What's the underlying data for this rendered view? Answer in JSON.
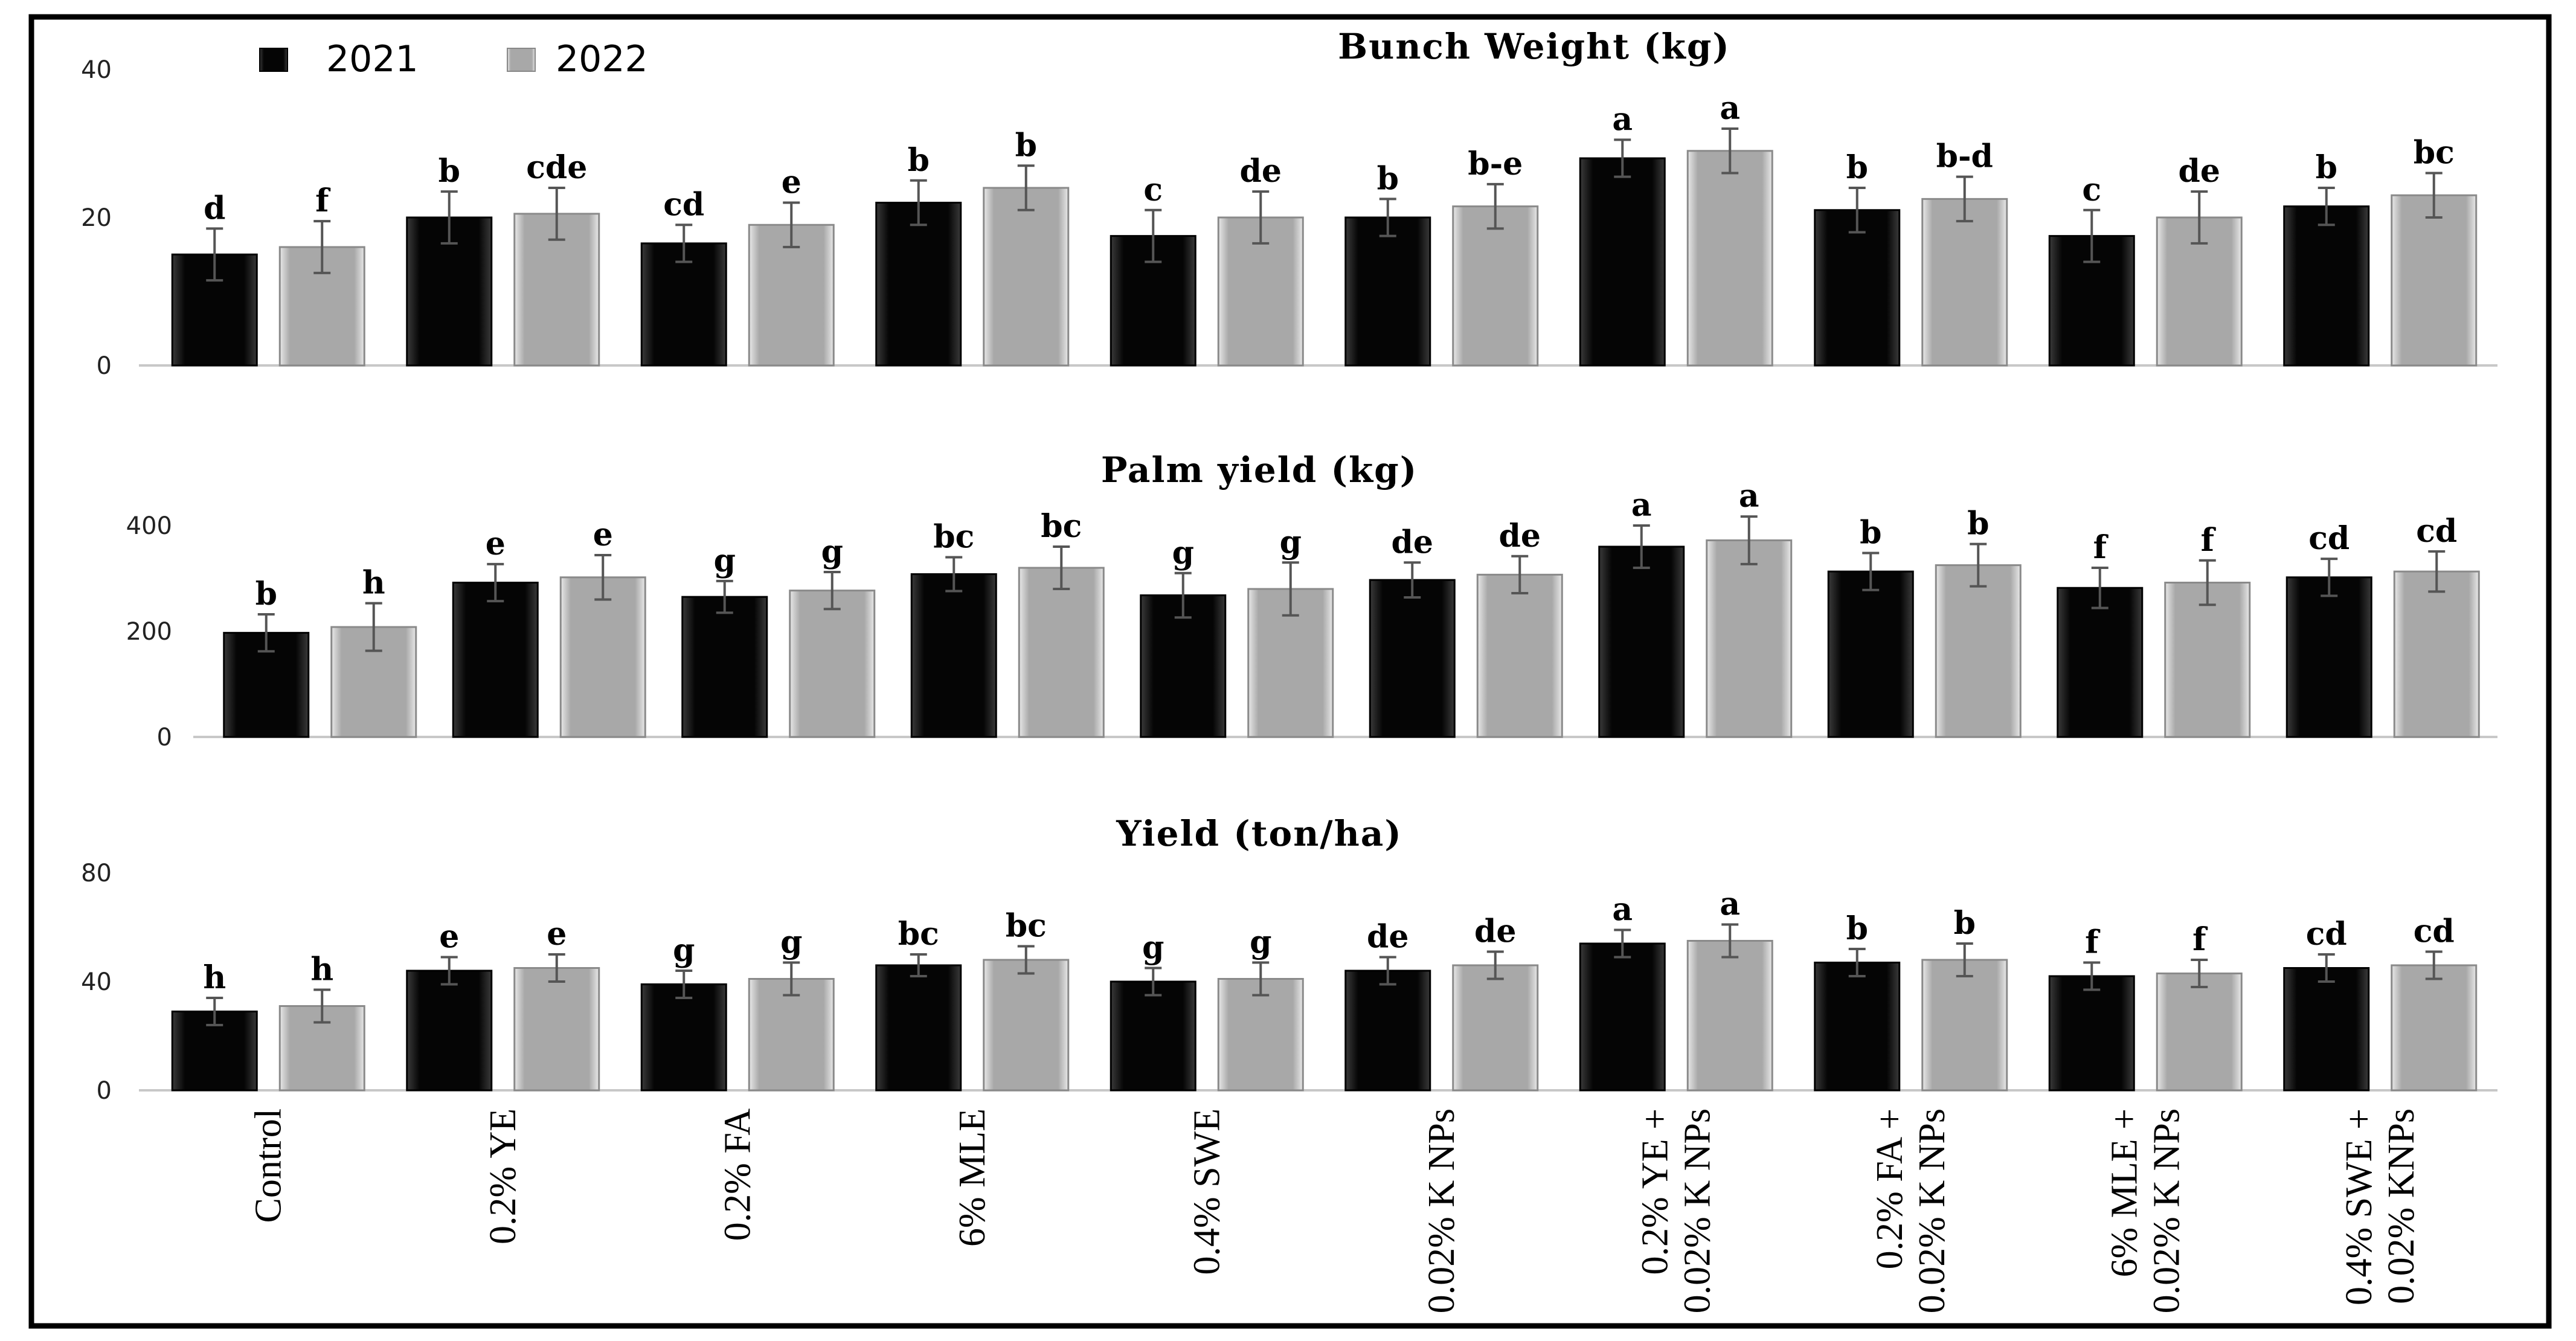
{
  "legend": {
    "series_2021": "2021",
    "series_2022": "2022"
  },
  "colors": {
    "s2021": "#0c0c0c",
    "s2022": "#b3b3b3",
    "frame": "#000000",
    "axis": "#c8c8c8",
    "error": "#555555"
  },
  "chart_data": [
    {
      "type": "bar",
      "title": "Bunch Weight (kg)",
      "ylim": [
        0,
        40
      ],
      "yticks": [
        "0",
        "20",
        "40"
      ],
      "categories": [
        "Control",
        "0.2% YE",
        "0.2% FA",
        "6% MLE",
        "0.4% SWE",
        "0.02% K NPs",
        "0.2% YE + 0.02% K NPs",
        "0.2% FA + 0.02% K NPs",
        "6% MLE + 0.02% K NPs",
        "0.4% SWE + 0.02% KNPs"
      ],
      "series": [
        {
          "name": "2021",
          "values": [
            15,
            20,
            16.5,
            22,
            17.5,
            20,
            28,
            21,
            17.5,
            21.5
          ],
          "errors": [
            3.5,
            3.5,
            2.5,
            3,
            3.5,
            2.5,
            2.5,
            3,
            3.5,
            2.5
          ],
          "letters": [
            "d",
            "b",
            "cd",
            "b",
            "c",
            "b",
            "a",
            "b",
            "c",
            "b"
          ]
        },
        {
          "name": "2022",
          "values": [
            16,
            20.5,
            19,
            24,
            20,
            21.5,
            29,
            22.5,
            20,
            23
          ],
          "errors": [
            3.5,
            3.5,
            3,
            3,
            3.5,
            3,
            3,
            3,
            3.5,
            3
          ],
          "letters": [
            "f",
            "cde",
            "e",
            "b",
            "de",
            "b-e",
            "a",
            "b-d",
            "de",
            "bc"
          ]
        }
      ]
    },
    {
      "type": "bar",
      "title": "Palm yield (kg)",
      "ylim": [
        0,
        400
      ],
      "yticks": [
        "0",
        "200",
        "400"
      ],
      "categories": [
        "Control",
        "0.2% YE",
        "0.2% FA",
        "6% MLE",
        "0.4% SWE",
        "0.02% K NPs",
        "0.2% YE + 0.02% K NPs",
        "0.2% FA + 0.02% K NPs",
        "6% MLE + 0.02% K NPs",
        "0.4% SWE + 0.02% KNPs"
      ],
      "series": [
        {
          "name": "2021",
          "values": [
            197,
            292,
            265,
            308,
            268,
            297,
            360,
            313,
            282,
            302
          ],
          "errors": [
            35,
            35,
            30,
            32,
            42,
            33,
            40,
            35,
            38,
            35
          ],
          "letters": [
            "b",
            "e",
            "g",
            "bc",
            "g",
            "de",
            "a",
            "b",
            "f",
            "cd"
          ]
        },
        {
          "name": "2022",
          "values": [
            208,
            302,
            277,
            320,
            280,
            307,
            372,
            325,
            292,
            313
          ],
          "errors": [
            45,
            42,
            35,
            40,
            50,
            35,
            45,
            40,
            42,
            38
          ],
          "letters": [
            "h",
            "e",
            "g",
            "bc",
            "g",
            "de",
            "a",
            "b",
            "f",
            "cd"
          ]
        }
      ]
    },
    {
      "type": "bar",
      "title": "Yield (ton/ha)",
      "ylim": [
        0,
        80
      ],
      "yticks": [
        "0",
        "40",
        "80"
      ],
      "categories": [
        "Control",
        "0.2% YE",
        "0.2% FA",
        "6% MLE",
        "0.4% SWE",
        "0.02% K NPs",
        "0.2% YE + 0.02% K NPs",
        "0.2% FA + 0.02% K NPs",
        "6% MLE + 0.02% K NPs",
        "0.4% SWE + 0.02% KNPs"
      ],
      "series": [
        {
          "name": "2021",
          "values": [
            29,
            44,
            39,
            46,
            40,
            44,
            54,
            47,
            42,
            45
          ],
          "errors": [
            5,
            5,
            5,
            4,
            5,
            5,
            5,
            5,
            5,
            5
          ],
          "letters": [
            "h",
            "e",
            "g",
            "bc",
            "g",
            "de",
            "a",
            "b",
            "f",
            "cd"
          ]
        },
        {
          "name": "2022",
          "values": [
            31,
            45,
            41,
            48,
            41,
            46,
            55,
            48,
            43,
            46
          ],
          "errors": [
            6,
            5,
            6,
            5,
            6,
            5,
            6,
            6,
            5,
            5
          ],
          "letters": [
            "h",
            "e",
            "g",
            "bc",
            "g",
            "de",
            "a",
            "b",
            "f",
            "cd"
          ]
        }
      ]
    }
  ],
  "category_labels": [
    [
      "Control"
    ],
    [
      "0.2% YE"
    ],
    [
      "0.2% FA"
    ],
    [
      "6% MLE"
    ],
    [
      "0.4% SWE"
    ],
    [
      "0.02% K NPs"
    ],
    [
      "0.2% YE +",
      "0.02% K NPs"
    ],
    [
      "0.2% FA +",
      "0.02% K NPs"
    ],
    [
      "6% MLE +",
      "0.02% K NPs"
    ],
    [
      "0.4% SWE +",
      "0.02% KNPs"
    ]
  ]
}
